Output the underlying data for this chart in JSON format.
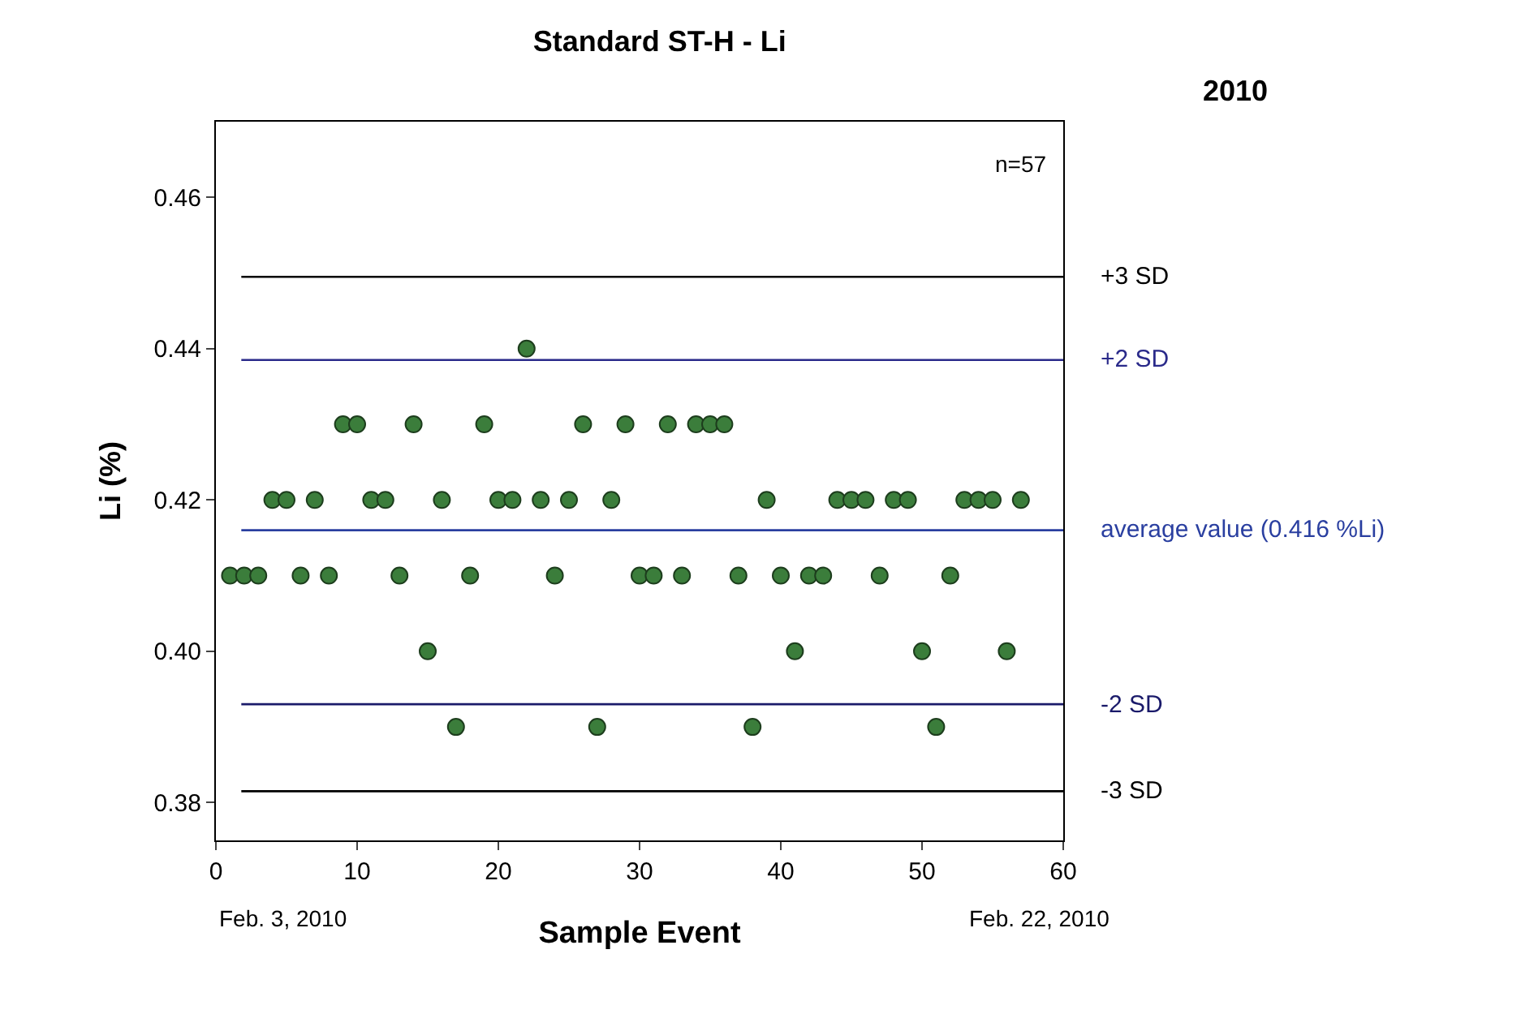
{
  "chart_data": {
    "type": "scatter",
    "title": "Standard ST-H - Li",
    "xlabel": "Sample Event",
    "ylabel": "Li (%)",
    "x": [
      1,
      2,
      3,
      4,
      5,
      6,
      7,
      8,
      9,
      10,
      11,
      12,
      13,
      14,
      15,
      16,
      17,
      18,
      19,
      20,
      21,
      22,
      23,
      24,
      25,
      26,
      27,
      28,
      29,
      30,
      31,
      32,
      33,
      34,
      35,
      36,
      37,
      38,
      39,
      40,
      41,
      42,
      43,
      44,
      45,
      46,
      47,
      48,
      49,
      50,
      51,
      52,
      53,
      54,
      55,
      56,
      57
    ],
    "values": [
      0.41,
      0.41,
      0.41,
      0.42,
      0.42,
      0.41,
      0.42,
      0.41,
      0.43,
      0.43,
      0.42,
      0.42,
      0.41,
      0.43,
      0.4,
      0.42,
      0.39,
      0.41,
      0.43,
      0.42,
      0.42,
      0.44,
      0.42,
      0.41,
      0.42,
      0.43,
      0.39,
      0.42,
      0.43,
      0.41,
      0.41,
      0.43,
      0.41,
      0.43,
      0.43,
      0.43,
      0.41,
      0.39,
      0.42,
      0.41,
      0.4,
      0.41,
      0.41,
      0.42,
      0.42,
      0.42,
      0.41,
      0.42,
      0.42,
      0.4,
      0.39,
      0.41,
      0.42,
      0.42,
      0.42,
      0.4,
      0.42
    ],
    "color": "#3b7d3b",
    "marker": "circle",
    "grid": false,
    "legend": false,
    "xlim": [
      0,
      60
    ],
    "xticks": [
      0,
      10,
      20,
      30,
      40,
      50,
      60
    ],
    "ylim": [
      0.375,
      0.47
    ],
    "yticks": [
      0.38,
      {
        "value": 0.4,
        "label": "0.40"
      },
      0.42,
      0.44,
      0.46
    ],
    "ref_lines": [
      {
        "axis": "y",
        "value": 0.4495,
        "label": "+3 SD",
        "color": "#000000"
      },
      {
        "axis": "y",
        "value": 0.4385,
        "label": "+2 SD",
        "color": "#2a2a8a"
      },
      {
        "axis": "y",
        "value": 0.416,
        "label": "average value (0.416 %Li)",
        "color": "#2a3fa0"
      },
      {
        "axis": "y",
        "value": 0.393,
        "label": "-2 SD",
        "color": "#1a1a6a"
      },
      {
        "axis": "y",
        "value": 0.3815,
        "label": "-3 SD",
        "color": "#000000"
      }
    ],
    "annotations": [
      "2010",
      "n=57",
      "Feb. 3, 2010",
      "Feb. 22, 2010"
    ]
  }
}
